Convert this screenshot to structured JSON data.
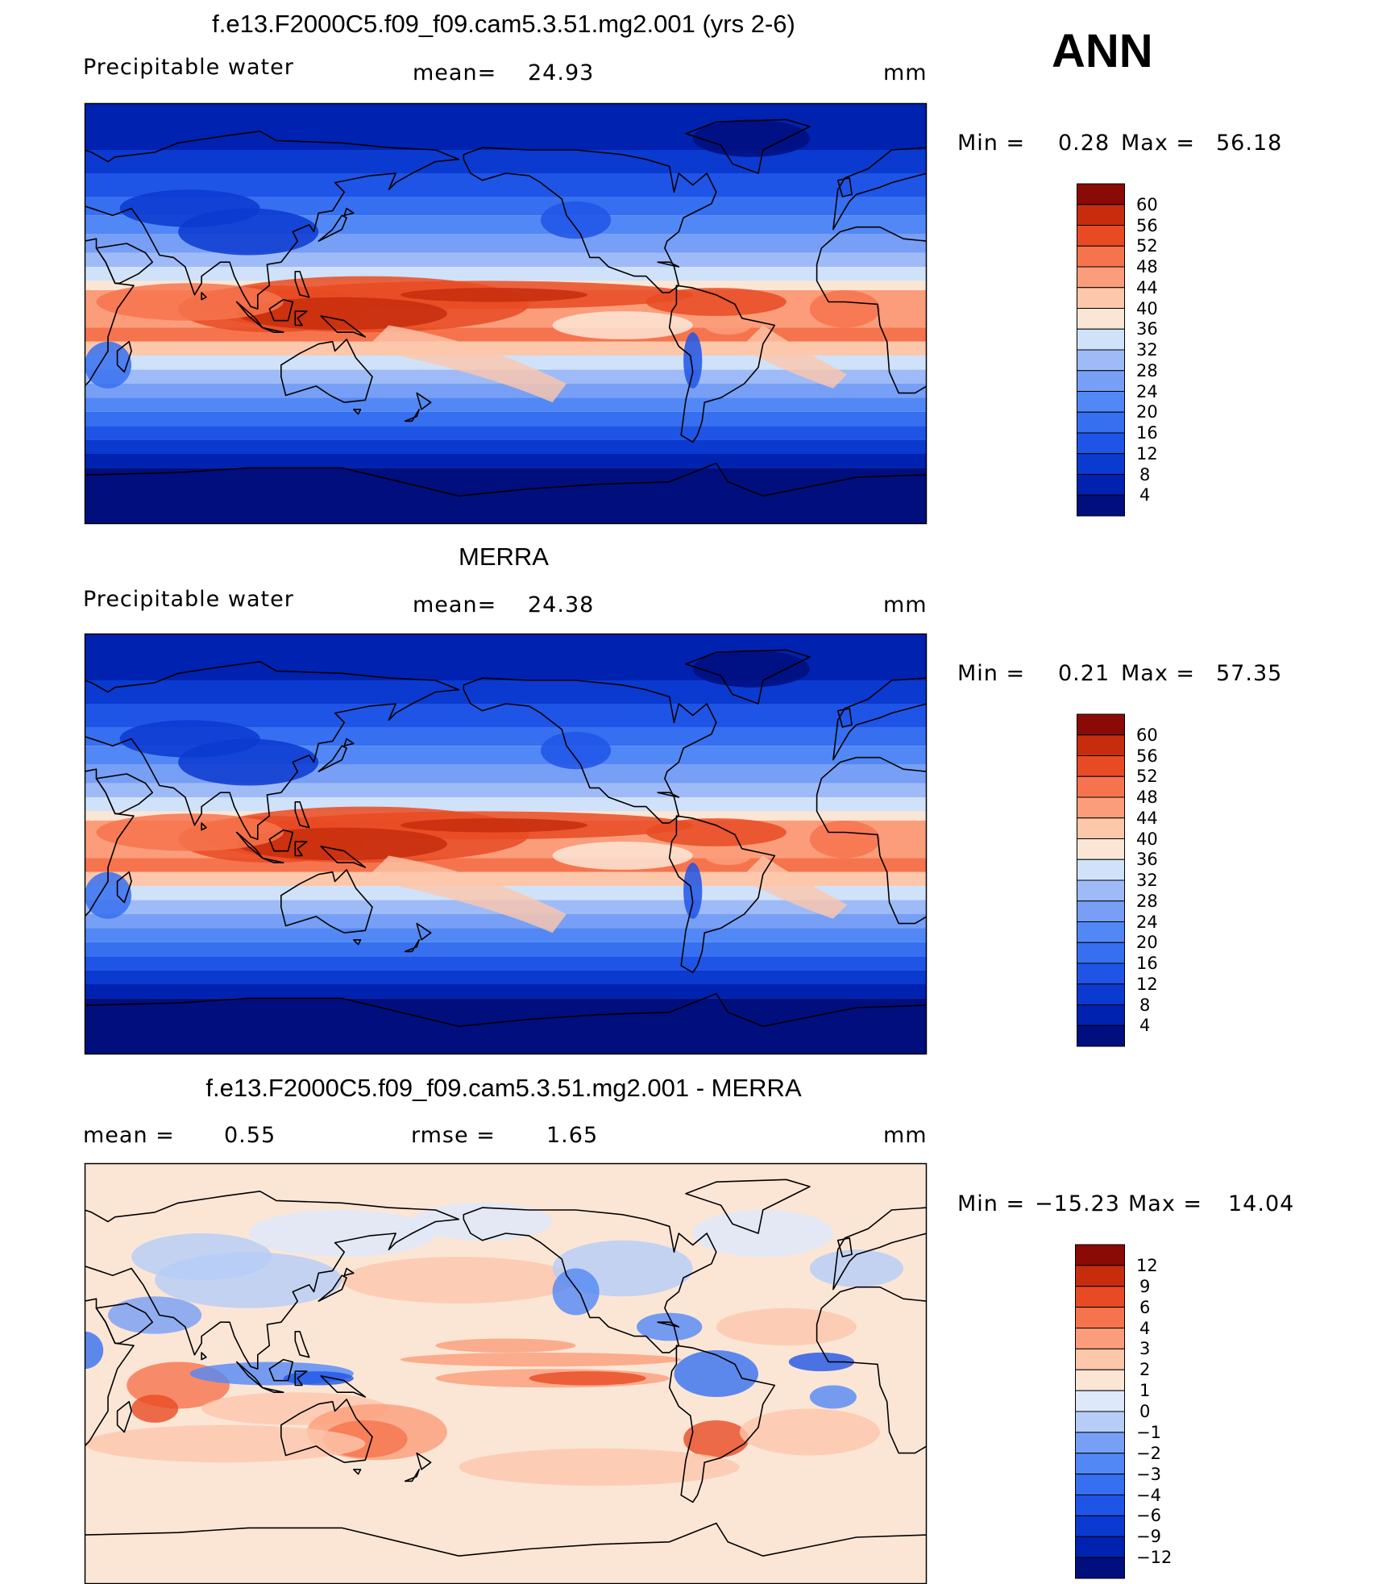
{
  "season": "ANN",
  "panels": [
    {
      "title": "f.e13.F2000C5.f09_f09.cam5.3.51.mg2.001 (yrs 2-6)",
      "variable": "Precipitable water",
      "stat1_label": "mean=",
      "stat1_value": "24.93",
      "stat2_label": "",
      "stat2_value": "",
      "units": "mm",
      "min_label": "Min  =",
      "min_value": "0.28",
      "max_label": "Max  =",
      "max_value": "56.18",
      "levels": [
        "60",
        "56",
        "52",
        "48",
        "44",
        "40",
        "36",
        "32",
        "28",
        "24",
        "20",
        "16",
        "12",
        "8",
        "4"
      ]
    },
    {
      "title": "MERRA",
      "variable": "Precipitable water",
      "stat1_label": "mean=",
      "stat1_value": "24.38",
      "stat2_label": "",
      "stat2_value": "",
      "units": "mm",
      "min_label": "Min  =",
      "min_value": "0.21",
      "max_label": "Max  =",
      "max_value": "57.35",
      "levels": [
        "60",
        "56",
        "52",
        "48",
        "44",
        "40",
        "36",
        "32",
        "28",
        "24",
        "20",
        "16",
        "12",
        "8",
        "4"
      ]
    },
    {
      "title": "f.e13.F2000C5.f09_f09.cam5.3.51.mg2.001 - MERRA",
      "variable": "",
      "stat1_label": "mean  =",
      "stat1_value": "0.55",
      "stat2_label": "rmse  =",
      "stat2_value": "1.65",
      "units": "mm",
      "min_label": "Min  =",
      "min_value": "−15.23",
      "max_label": "Max  =",
      "max_value": "14.04",
      "levels": [
        "12",
        "9",
        "6",
        "4",
        "3",
        "2",
        "1",
        "0",
        "−1",
        "−2",
        "−3",
        "−4",
        "−6",
        "−9",
        "−12"
      ]
    }
  ],
  "chart_data": [
    {
      "type": "heatmap",
      "title": "f.e13.F2000C5.f09_f09.cam5.3.51.mg2.001 (yrs 2-6)",
      "subtitle": "Precipitable water",
      "units": "mm",
      "mean": 24.93,
      "min": 0.28,
      "max": 56.18,
      "colorbar_levels": [
        4,
        8,
        12,
        16,
        20,
        24,
        28,
        32,
        36,
        40,
        44,
        48,
        52,
        56,
        60
      ],
      "colors": [
        "#000e7e",
        "#0022b0",
        "#0b3ad0",
        "#1f55e6",
        "#3670f0",
        "#5288f5",
        "#779ff5",
        "#9ebbf7",
        "#cfe2f9",
        "#fbe6d6",
        "#fcc7ab",
        "#fb9d7a",
        "#f6744d",
        "#e84b23",
        "#c72d0d",
        "#8a0a06"
      ]
    },
    {
      "type": "heatmap",
      "title": "MERRA",
      "subtitle": "Precipitable water",
      "units": "mm",
      "mean": 24.38,
      "min": 0.21,
      "max": 57.35,
      "colorbar_levels": [
        4,
        8,
        12,
        16,
        20,
        24,
        28,
        32,
        36,
        40,
        44,
        48,
        52,
        56,
        60
      ],
      "colors": [
        "#000e7e",
        "#0022b0",
        "#0b3ad0",
        "#1f55e6",
        "#3670f0",
        "#5288f5",
        "#779ff5",
        "#9ebbf7",
        "#cfe2f9",
        "#fbe6d6",
        "#fcc7ab",
        "#fb9d7a",
        "#f6744d",
        "#e84b23",
        "#c72d0d",
        "#8a0a06"
      ]
    },
    {
      "type": "heatmap",
      "title": "f.e13.F2000C5.f09_f09.cam5.3.51.mg2.001 - MERRA",
      "units": "mm",
      "mean": 0.55,
      "rmse": 1.65,
      "min": -15.23,
      "max": 14.04,
      "colorbar_levels": [
        -12,
        -9,
        -6,
        -4,
        -3,
        -2,
        -1,
        0,
        1,
        2,
        3,
        4,
        6,
        9,
        12
      ],
      "colors": [
        "#000e7e",
        "#0022b0",
        "#0b3ad0",
        "#1f55e6",
        "#3670f0",
        "#5288f5",
        "#779ff5",
        "#b6cdf8",
        "#dde9fb",
        "#fbe6d6",
        "#fcc7ab",
        "#fb9d7a",
        "#f6744d",
        "#e84b23",
        "#c72d0d",
        "#8a0a06"
      ]
    }
  ]
}
